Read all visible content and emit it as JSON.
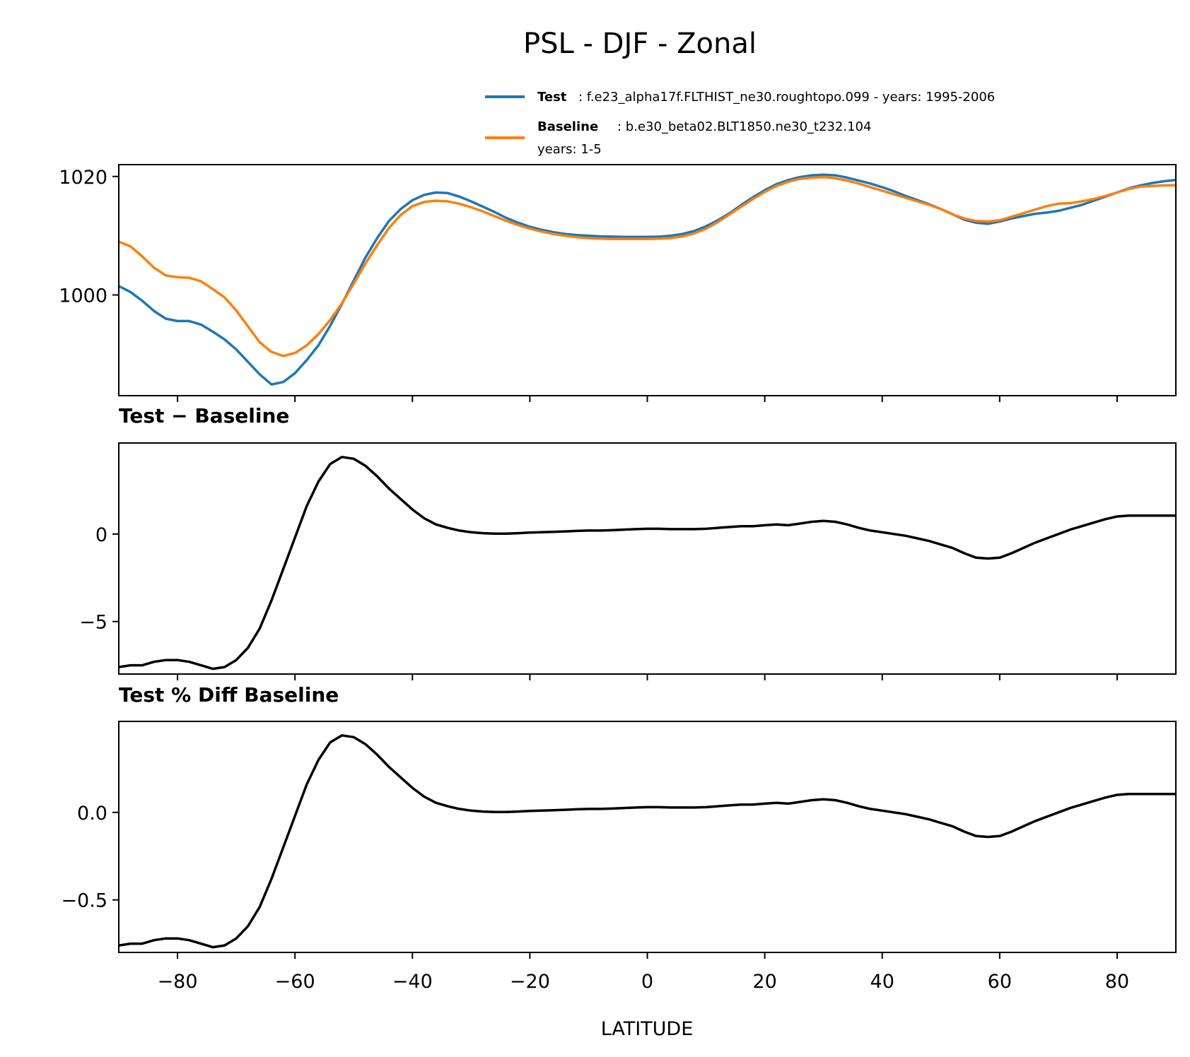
{
  "chart_data": {
    "type": "line",
    "title": "PSL - DJF - Zonal",
    "xlabel": "LATITUDE",
    "xlim": [
      -90,
      90
    ],
    "xticks": [
      -80,
      -60,
      -40,
      -20,
      0,
      20,
      40,
      60,
      80
    ],
    "xtick_labels": [
      "−80",
      "−60",
      "−40",
      "−20",
      "0",
      "20",
      "40",
      "60",
      "80"
    ],
    "legend": [
      {
        "label": "Test",
        "desc": ": f.e23_alpha17f.FLTHIST_ne30.roughtopo.099 - years: 1995-2006",
        "desc2": "",
        "color": "#1f77b4"
      },
      {
        "label": "Baseline",
        "desc": ": b.e30_beta02.BLT1850.ne30_t232.104",
        "desc2": "years: 1-5",
        "color": "#ff7f0e"
      }
    ],
    "panels": [
      {
        "title": "",
        "ylim": [
          983,
          1022
        ],
        "yticks": [
          1000,
          1020
        ],
        "ytick_labels": [
          "1000",
          "1020"
        ],
        "series": [
          {
            "name": "Test",
            "color": "#1f77b4",
            "x": [
              -90,
              -88,
              -86,
              -84,
              -82,
              -80,
              -78,
              -76,
              -74,
              -72,
              -70,
              -68,
              -66,
              -64,
              -62,
              -60,
              -58,
              -56,
              -54,
              -52,
              -50,
              -48,
              -46,
              -44,
              -42,
              -40,
              -38,
              -36,
              -34,
              -32,
              -30,
              -28,
              -26,
              -24,
              -22,
              -20,
              -18,
              -16,
              -14,
              -12,
              -10,
              -8,
              -6,
              -4,
              -2,
              0,
              2,
              4,
              6,
              8,
              10,
              12,
              14,
              16,
              18,
              20,
              22,
              24,
              26,
              28,
              30,
              32,
              34,
              36,
              38,
              40,
              42,
              44,
              46,
              48,
              50,
              52,
              54,
              56,
              58,
              60,
              62,
              64,
              66,
              68,
              70,
              72,
              74,
              76,
              78,
              80,
              82,
              84,
              86,
              88,
              90
            ],
            "y": [
              1001.5,
              1000.5,
              999,
              997.3,
              996,
              995.6,
              995.6,
              995,
              993.8,
              992.5,
              990.8,
              988.7,
              986.6,
              984.9,
              985.3,
              986.8,
              989,
              991.5,
              994.8,
              998.5,
              1002.4,
              1006.3,
              1009.6,
              1012.5,
              1014.5,
              1016,
              1016.9,
              1017.3,
              1017.2,
              1016.6,
              1015.8,
              1014.9,
              1014,
              1013,
              1012.2,
              1011.5,
              1011,
              1010.6,
              1010.3,
              1010.1,
              1010,
              1009.9,
              1009.85,
              1009.8,
              1009.8,
              1009.8,
              1009.85,
              1010,
              1010.3,
              1010.8,
              1011.6,
              1012.6,
              1013.8,
              1015.2,
              1016.5,
              1017.7,
              1018.7,
              1019.4,
              1019.9,
              1020.2,
              1020.3,
              1020.2,
              1019.8,
              1019.3,
              1018.8,
              1018.2,
              1017.5,
              1016.7,
              1016,
              1015.3,
              1014.5,
              1013.6,
              1012.7,
              1012.2,
              1012,
              1012.4,
              1012.9,
              1013.3,
              1013.7,
              1013.9,
              1014.2,
              1014.7,
              1015.2,
              1015.9,
              1016.6,
              1017.3,
              1018,
              1018.5,
              1018.9,
              1019.2,
              1019.4
            ]
          },
          {
            "name": "Baseline",
            "color": "#ff7f0e",
            "x": [
              -90,
              -88,
              -86,
              -84,
              -82,
              -80,
              -78,
              -76,
              -74,
              -72,
              -70,
              -68,
              -66,
              -64,
              -62,
              -60,
              -58,
              -56,
              -54,
              -52,
              -50,
              -48,
              -46,
              -44,
              -42,
              -40,
              -38,
              -36,
              -34,
              -32,
              -30,
              -28,
              -26,
              -24,
              -22,
              -20,
              -18,
              -16,
              -14,
              -12,
              -10,
              -8,
              -6,
              -4,
              -2,
              0,
              2,
              4,
              6,
              8,
              10,
              12,
              14,
              16,
              18,
              20,
              22,
              24,
              26,
              28,
              30,
              32,
              34,
              36,
              38,
              40,
              42,
              44,
              46,
              48,
              50,
              52,
              54,
              56,
              58,
              60,
              62,
              64,
              66,
              68,
              70,
              72,
              74,
              76,
              78,
              80,
              82,
              84,
              86,
              88,
              90
            ],
            "y": [
              1009,
              1008.2,
              1006.5,
              1004.6,
              1003.3,
              1003,
              1002.9,
              1002.3,
              1001,
              999.6,
              997.4,
              994.7,
              992,
              990.4,
              989.7,
              990.2,
              991.5,
              993.4,
              995.8,
              998.6,
              1001.9,
              1005.3,
              1008.4,
              1011.3,
              1013.5,
              1015,
              1015.7,
              1015.9,
              1015.8,
              1015.4,
              1014.8,
              1014.1,
              1013.3,
              1012.5,
              1011.8,
              1011.2,
              1010.7,
              1010.3,
              1010,
              1009.75,
              1009.6,
              1009.5,
              1009.45,
              1009.45,
              1009.45,
              1009.45,
              1009.5,
              1009.6,
              1009.9,
              1010.4,
              1011.2,
              1012.3,
              1013.6,
              1014.9,
              1016.2,
              1017.4,
              1018.4,
              1019.1,
              1019.6,
              1019.8,
              1019.9,
              1019.7,
              1019.3,
              1018.8,
              1018.2,
              1017.6,
              1017,
              1016.4,
              1015.8,
              1015.2,
              1014.5,
              1013.6,
              1012.9,
              1012.5,
              1012.4,
              1012.6,
              1013.2,
              1013.8,
              1014.4,
              1015,
              1015.4,
              1015.5,
              1015.8,
              1016.2,
              1016.7,
              1017.3,
              1017.9,
              1018.3,
              1018.4,
              1018.5,
              1018.5
            ]
          }
        ]
      },
      {
        "title": "Test − Baseline",
        "ylim": [
          -8,
          5.2
        ],
        "yticks": [
          -5,
          0
        ],
        "ytick_labels": [
          "−5",
          "0"
        ],
        "series": [
          {
            "name": "Test − Baseline",
            "color": "#000000",
            "x": [
              -90,
              -88,
              -86,
              -84,
              -82,
              -80,
              -78,
              -76,
              -74,
              -72,
              -70,
              -68,
              -66,
              -64,
              -62,
              -60,
              -58,
              -56,
              -54,
              -52,
              -50,
              -48,
              -46,
              -44,
              -42,
              -40,
              -38,
              -36,
              -34,
              -32,
              -30,
              -28,
              -26,
              -24,
              -22,
              -20,
              -18,
              -16,
              -14,
              -12,
              -10,
              -8,
              -6,
              -4,
              -2,
              0,
              2,
              4,
              6,
              8,
              10,
              12,
              14,
              16,
              18,
              20,
              22,
              24,
              26,
              28,
              30,
              32,
              34,
              36,
              38,
              40,
              42,
              44,
              46,
              48,
              50,
              52,
              54,
              56,
              58,
              60,
              62,
              64,
              66,
              68,
              70,
              72,
              74,
              76,
              78,
              80,
              82,
              84,
              86,
              88,
              90
            ],
            "y": [
              -7.6,
              -7.5,
              -7.5,
              -7.3,
              -7.2,
              -7.2,
              -7.3,
              -7.5,
              -7.7,
              -7.6,
              -7.2,
              -6.5,
              -5.4,
              -3.8,
              -2,
              -0.2,
              1.6,
              3,
              4,
              4.4,
              4.3,
              3.9,
              3.3,
              2.6,
              2,
              1.4,
              0.9,
              0.55,
              0.35,
              0.2,
              0.1,
              0.05,
              0.02,
              0.02,
              0.05,
              0.08,
              0.1,
              0.12,
              0.15,
              0.18,
              0.2,
              0.2,
              0.22,
              0.25,
              0.28,
              0.3,
              0.3,
              0.28,
              0.28,
              0.28,
              0.3,
              0.35,
              0.4,
              0.45,
              0.45,
              0.5,
              0.55,
              0.5,
              0.6,
              0.7,
              0.75,
              0.7,
              0.55,
              0.35,
              0.2,
              0.1,
              0,
              -0.1,
              -0.25,
              -0.4,
              -0.6,
              -0.8,
              -1.1,
              -1.35,
              -1.4,
              -1.35,
              -1.1,
              -0.8,
              -0.5,
              -0.25,
              0,
              0.25,
              0.45,
              0.65,
              0.85,
              1,
              1.05,
              1.05,
              1.05,
              1.05,
              1.05
            ]
          }
        ]
      },
      {
        "title": "Test % Diff Baseline",
        "ylim": [
          -0.8,
          0.52
        ],
        "yticks": [
          -0.5,
          0.0
        ],
        "ytick_labels": [
          "−0.5",
          "0.0"
        ],
        "series": [
          {
            "name": "Test % Diff Baseline",
            "color": "#000000",
            "x": [
              -90,
              -88,
              -86,
              -84,
              -82,
              -80,
              -78,
              -76,
              -74,
              -72,
              -70,
              -68,
              -66,
              -64,
              -62,
              -60,
              -58,
              -56,
              -54,
              -52,
              -50,
              -48,
              -46,
              -44,
              -42,
              -40,
              -38,
              -36,
              -34,
              -32,
              -30,
              -28,
              -26,
              -24,
              -22,
              -20,
              -18,
              -16,
              -14,
              -12,
              -10,
              -8,
              -6,
              -4,
              -2,
              0,
              2,
              4,
              6,
              8,
              10,
              12,
              14,
              16,
              18,
              20,
              22,
              24,
              26,
              28,
              30,
              32,
              34,
              36,
              38,
              40,
              42,
              44,
              46,
              48,
              50,
              52,
              54,
              56,
              58,
              60,
              62,
              64,
              66,
              68,
              70,
              72,
              74,
              76,
              78,
              80,
              82,
              84,
              86,
              88,
              90
            ],
            "y": [
              -0.76,
              -0.75,
              -0.75,
              -0.73,
              -0.72,
              -0.72,
              -0.73,
              -0.75,
              -0.77,
              -0.76,
              -0.72,
              -0.65,
              -0.54,
              -0.38,
              -0.2,
              -0.02,
              0.16,
              0.3,
              0.4,
              0.44,
              0.43,
              0.39,
              0.33,
              0.26,
              0.2,
              0.14,
              0.09,
              0.055,
              0.035,
              0.02,
              0.01,
              0.005,
              0.002,
              0.002,
              0.005,
              0.008,
              0.01,
              0.012,
              0.015,
              0.018,
              0.02,
              0.02,
              0.022,
              0.025,
              0.028,
              0.03,
              0.03,
              0.028,
              0.028,
              0.028,
              0.03,
              0.035,
              0.04,
              0.045,
              0.045,
              0.05,
              0.055,
              0.05,
              0.06,
              0.07,
              0.075,
              0.07,
              0.055,
              0.035,
              0.02,
              0.01,
              0,
              -0.01,
              -0.025,
              -0.04,
              -0.06,
              -0.08,
              -0.11,
              -0.135,
              -0.14,
              -0.135,
              -0.11,
              -0.08,
              -0.05,
              -0.025,
              0,
              0.025,
              0.045,
              0.065,
              0.085,
              0.1,
              0.105,
              0.105,
              0.105,
              0.105,
              0.105
            ]
          }
        ]
      }
    ]
  }
}
